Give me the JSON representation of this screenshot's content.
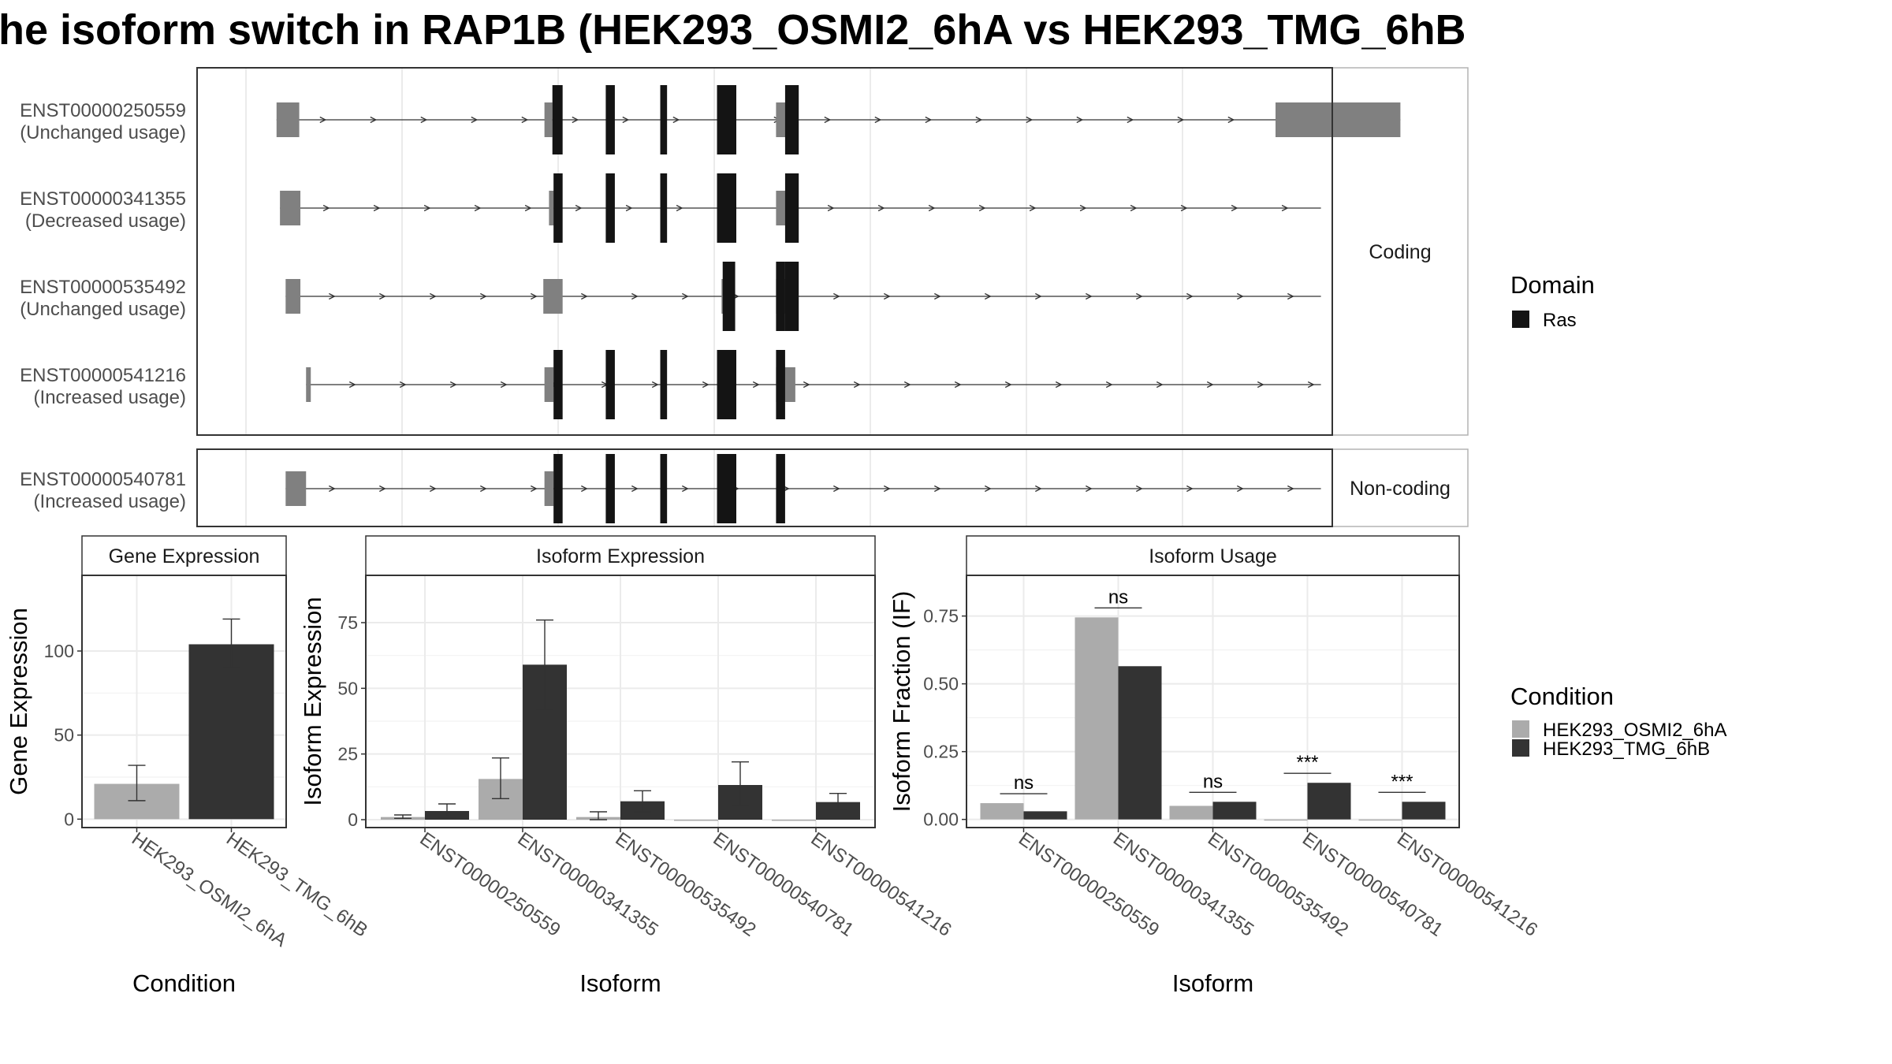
{
  "title": "he isoform switch in RAP1B (HEK293_OSMI2_6hA vs HEK293_TMG_6hB",
  "colors": {
    "utr": "#808080",
    "cds": "#141414",
    "condition_a": "#ababab",
    "condition_b": "#333333",
    "grid": "#ebebeb",
    "border": "#333333",
    "strip": "#ffffff"
  },
  "structure": {
    "x_domain": [
      0,
      1000
    ],
    "groups": [
      {
        "label": "Coding",
        "transcripts": [
          {
            "id": "ENST00000250559",
            "usage": "(Unchanged usage)",
            "line": [
              70,
              1060
            ],
            "utr": [
              [
                70,
                90
              ],
              [
                306,
                313
              ],
              [
                510,
                522
              ],
              [
                950,
                1060
              ]
            ],
            "cds": [
              [
                313,
                322
              ],
              [
                360,
                368
              ],
              [
                408,
                414
              ],
              [
                458,
                475
              ],
              [
                518,
                530
              ]
            ]
          },
          {
            "id": "ENST00000341355",
            "usage": "(Decreased usage)",
            "line": [
              73,
              990
            ],
            "utr": [
              [
                73,
                91
              ],
              [
                310,
                314
              ],
              [
                510,
                523
              ]
            ],
            "cds": [
              [
                314,
                322
              ],
              [
                360,
                368
              ],
              [
                408,
                414
              ],
              [
                458,
                475
              ],
              [
                518,
                530
              ]
            ]
          },
          {
            "id": "ENST00000535492",
            "usage": "(Unchanged usage)",
            "line": [
              78,
              990
            ],
            "utr": [
              [
                78,
                91
              ],
              [
                305,
                322
              ],
              [
                462,
                463
              ],
              [
                510,
                523
              ]
            ],
            "cds": [
              [
                463,
                474
              ],
              [
                510,
                518
              ],
              [
                518,
                530
              ]
            ]
          },
          {
            "id": "ENST00000541216",
            "usage": "(Increased usage)",
            "line": [
              96,
              990
            ],
            "utr": [
              [
                96,
                99
              ],
              [
                306,
                314
              ],
              [
                510,
                527
              ]
            ],
            "cds": [
              [
                314,
                322
              ],
              [
                360,
                368
              ],
              [
                408,
                414
              ],
              [
                458,
                475
              ],
              [
                510,
                518
              ]
            ]
          }
        ]
      },
      {
        "label": "Non-coding",
        "transcripts": [
          {
            "id": "ENST00000540781",
            "usage": "(Increased usage)",
            "line": [
              78,
              990
            ],
            "utr": [
              [
                78,
                96
              ],
              [
                306,
                314
              ]
            ],
            "cds": [
              [
                314,
                322
              ],
              [
                360,
                368
              ],
              [
                408,
                414
              ],
              [
                458,
                475
              ],
              [
                510,
                518
              ]
            ]
          }
        ]
      }
    ]
  },
  "legend_domain": {
    "title": "Domain",
    "items": [
      {
        "label": "Ras",
        "color": "#141414"
      }
    ]
  },
  "legend_condition": {
    "title": "Condition",
    "items": [
      {
        "label": "HEK293_OSMI2_6hA",
        "color": "#ababab"
      },
      {
        "label": "HEK293_TMG_6hB",
        "color": "#333333"
      }
    ]
  },
  "chart_data": [
    {
      "type": "bar",
      "title": "Gene Expression",
      "xlabel": "Condition",
      "ylabel": "Gene Expression",
      "categories": [
        "HEK293_OSMI2_6hA",
        "HEK293_TMG_6hB"
      ],
      "values": [
        21,
        104
      ],
      "errors": [
        [
          11,
          32
        ],
        [
          90,
          119
        ]
      ],
      "ylim": [
        -5,
        145
      ],
      "yticks": [
        0,
        50,
        100
      ]
    },
    {
      "type": "bar",
      "title": "Isoform Expression",
      "xlabel": "Isoform",
      "ylabel": "Isoform Expression",
      "categories": [
        "ENST00000250559",
        "ENST00000341355",
        "ENST00000535492",
        "ENST00000540781",
        "ENST00000541216"
      ],
      "series": [
        {
          "name": "HEK293_OSMI2_6hA",
          "values": [
            1,
            15.5,
            1,
            0,
            0
          ],
          "errors": [
            [
              0.5,
              1.8
            ],
            [
              8,
              23.5
            ],
            [
              0,
              3
            ],
            [
              0,
              0
            ],
            [
              0,
              0
            ]
          ]
        },
        {
          "name": "HEK293_TMG_6hB",
          "values": [
            3.3,
            59,
            7,
            13.2,
            6.7
          ],
          "errors": [
            [
              1,
              6
            ],
            [
              42,
              76
            ],
            [
              3,
              11
            ],
            [
              5,
              22
            ],
            [
              4,
              10
            ]
          ]
        }
      ],
      "ylim": [
        -3,
        93
      ],
      "yticks": [
        0,
        25,
        50,
        75
      ]
    },
    {
      "type": "bar",
      "title": "Isoform Usage",
      "xlabel": "Isoform",
      "ylabel": "Isoform Fraction (IF)",
      "categories": [
        "ENST00000250559",
        "ENST00000341355",
        "ENST00000535492",
        "ENST00000540781",
        "ENST00000541216"
      ],
      "series": [
        {
          "name": "HEK293_OSMI2_6hA",
          "values": [
            0.06,
            0.745,
            0.05,
            0,
            0
          ]
        },
        {
          "name": "HEK293_TMG_6hB",
          "values": [
            0.03,
            0.565,
            0.065,
            0.135,
            0.065
          ]
        }
      ],
      "significance": [
        "ns",
        "ns",
        "ns",
        "***",
        "***"
      ],
      "ylim": [
        -0.03,
        0.9
      ],
      "yticks": [
        0.0,
        0.25,
        0.5,
        0.75
      ],
      "ytick_labels": [
        "0.00",
        "0.25",
        "0.50",
        "0.75"
      ]
    }
  ]
}
